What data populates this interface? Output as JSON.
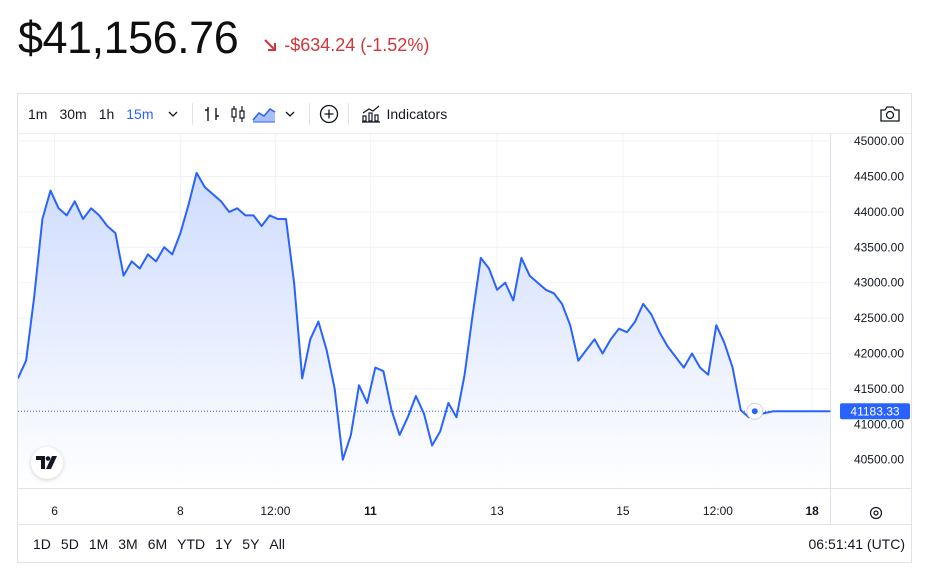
{
  "header": {
    "price": "$41,156.76",
    "change": "-$634.24 (-1.52%)"
  },
  "colors": {
    "line": "#2962ff",
    "negative": "#d1373a",
    "fill_top": "#c9d8fd",
    "fill_bottom": "#ffffff"
  },
  "toolbar": {
    "intervals": [
      "1m",
      "30m",
      "1h",
      "15m"
    ],
    "active_interval": "15m",
    "indicators_label": "Indicators",
    "icons": [
      "chevron-down-icon",
      "bar-chart-icon",
      "candlestick-icon",
      "area-chart-icon",
      "add-circle-icon",
      "indicators-icon",
      "camera-icon"
    ]
  },
  "ranges": [
    "1D",
    "5D",
    "1M",
    "3M",
    "6M",
    "YTD",
    "1Y",
    "5Y",
    "All"
  ],
  "clock": "06:51:41 (UTC)",
  "chart_data": {
    "type": "area",
    "y_ticks": [
      "45000.00",
      "44500.00",
      "44000.00",
      "43500.00",
      "43000.00",
      "42500.00",
      "42000.00",
      "41500.00",
      "41000.00",
      "40500.00"
    ],
    "ylim": [
      40100,
      45100
    ],
    "x_ticks": [
      {
        "label": "6",
        "bold": false
      },
      {
        "label": "8",
        "bold": false
      },
      {
        "label": "12:00",
        "bold": false
      },
      {
        "label": "11",
        "bold": true
      },
      {
        "label": "13",
        "bold": false
      },
      {
        "label": "15",
        "bold": false
      },
      {
        "label": "12:00",
        "bold": false
      },
      {
        "label": "18",
        "bold": true
      }
    ],
    "last_price_label": "41183.33",
    "last_price": 41183.33,
    "x": [
      0,
      1,
      2,
      3,
      4,
      5,
      6,
      7,
      8,
      9,
      10,
      11,
      12,
      13,
      14,
      15,
      16,
      17,
      18,
      19,
      20,
      21,
      22,
      23,
      24,
      25,
      26,
      27,
      28,
      29,
      30,
      31,
      32,
      33,
      34,
      35,
      36,
      37,
      38,
      39,
      40,
      41,
      42,
      43,
      44,
      45,
      46,
      47,
      48,
      49,
      50,
      51,
      52,
      53,
      54,
      55,
      56,
      57,
      58,
      59,
      60,
      61,
      62,
      63,
      64,
      65,
      66,
      67,
      68,
      69,
      70,
      71,
      72,
      73,
      74,
      75,
      76,
      77,
      78,
      79,
      80,
      81,
      82,
      83,
      84,
      85,
      86,
      87,
      88,
      89,
      90,
      91,
      92,
      93,
      94,
      95,
      96,
      97,
      98,
      99,
      100
    ],
    "values": [
      41650,
      41900,
      42800,
      43900,
      44300,
      44050,
      43950,
      44150,
      43900,
      44050,
      43950,
      43800,
      43700,
      43100,
      43300,
      43200,
      43400,
      43300,
      43500,
      43400,
      43700,
      44100,
      44550,
      44350,
      44250,
      44150,
      44000,
      44050,
      43950,
      43950,
      43800,
      43950,
      43900,
      43900,
      43000,
      41650,
      42200,
      42450,
      42050,
      41500,
      40500,
      40850,
      41550,
      41300,
      41800,
      41750,
      41200,
      40850,
      41100,
      41400,
      41150,
      40700,
      40900,
      41300,
      41100,
      41700,
      42550,
      43350,
      43200,
      42900,
      43000,
      42750,
      43350,
      43100,
      43000,
      42900,
      42850,
      42700,
      42400,
      41900,
      42050,
      42200,
      42000,
      42200,
      42350,
      42300,
      42450,
      42700,
      42550,
      42300,
      42100,
      41950,
      41800,
      42000,
      41800,
      41700,
      42400,
      42150,
      41800,
      41200,
      41100,
      41130,
      41160,
      41183,
      41183,
      41183,
      41183,
      41183,
      41183,
      41183,
      41183
    ]
  }
}
